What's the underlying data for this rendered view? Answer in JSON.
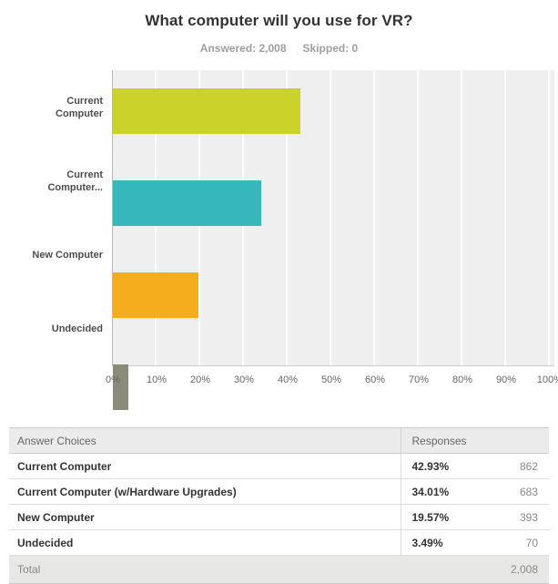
{
  "header": {
    "title": "What computer will you use for VR?",
    "answered_label": "Answered: 2,008",
    "skipped_label": "Skipped: 0"
  },
  "chart_data": {
    "type": "bar",
    "orientation": "horizontal",
    "title": "What computer will you use for VR?",
    "answered": 2008,
    "skipped": 0,
    "categories": [
      "Current\nComputer",
      "Current\nComputer...",
      "New Computer",
      "Undecided"
    ],
    "categories_full": [
      "Current Computer",
      "Current Computer (w/Hardware Upgrades)",
      "New Computer",
      "Undecided"
    ],
    "values": [
      42.93,
      34.01,
      19.57,
      3.49
    ],
    "counts": [
      862,
      683,
      393,
      70
    ],
    "colors": [
      "#cbd22a",
      "#35b7bc",
      "#f5ad1e",
      "#8a8c79"
    ],
    "x_ticks": [
      "0%",
      "10%",
      "20%",
      "30%",
      "40%",
      "50%",
      "60%",
      "70%",
      "80%",
      "90%",
      "100%"
    ],
    "xlim": [
      0,
      100
    ],
    "plot_background": "#efefef",
    "gridline_color": "#ffffff",
    "legend": "none",
    "grid": "vertical"
  },
  "table": {
    "col_answer": "Answer Choices",
    "col_responses": "Responses",
    "rows": [
      {
        "label": "Current Computer",
        "percent": "42.93%",
        "count": "862"
      },
      {
        "label": "Current Computer (w/Hardware Upgrades)",
        "percent": "34.01%",
        "count": "683"
      },
      {
        "label": "New Computer",
        "percent": "19.57%",
        "count": "393"
      },
      {
        "label": "Undecided",
        "percent": "3.49%",
        "count": "70"
      }
    ],
    "total_label": "Total",
    "total_value": "2,008"
  }
}
